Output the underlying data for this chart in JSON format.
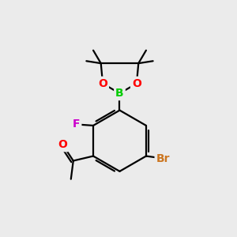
{
  "bg_color": "#ebebeb",
  "bond_color": "#000000",
  "bond_width": 1.6,
  "atom_colors": {
    "B": "#00cc00",
    "O": "#ff0000",
    "F": "#cc00cc",
    "Br": "#cc7722",
    "O_ketone": "#ff0000"
  },
  "font_size_atoms": 11,
  "figsize": [
    3.0,
    3.0
  ],
  "dpi": 100
}
